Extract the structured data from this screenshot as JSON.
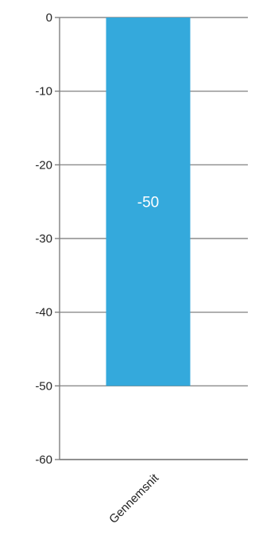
{
  "chart_data": {
    "type": "bar",
    "categories": [
      "Gennemsnit"
    ],
    "values": [
      -50
    ],
    "data_labels": [
      "-50"
    ],
    "ylim": [
      -60,
      0
    ],
    "yticks": [
      0,
      -10,
      -20,
      -30,
      -40,
      -50,
      -60
    ],
    "ytick_labels": [
      "0",
      "-10",
      "-20",
      "-30",
      "-40",
      "-50",
      "-60"
    ],
    "grid": true,
    "legend": "none",
    "colors": {
      "bar": "#34a9dc",
      "grid": "#8c8c8c",
      "axis": "#7f7f7f"
    }
  }
}
